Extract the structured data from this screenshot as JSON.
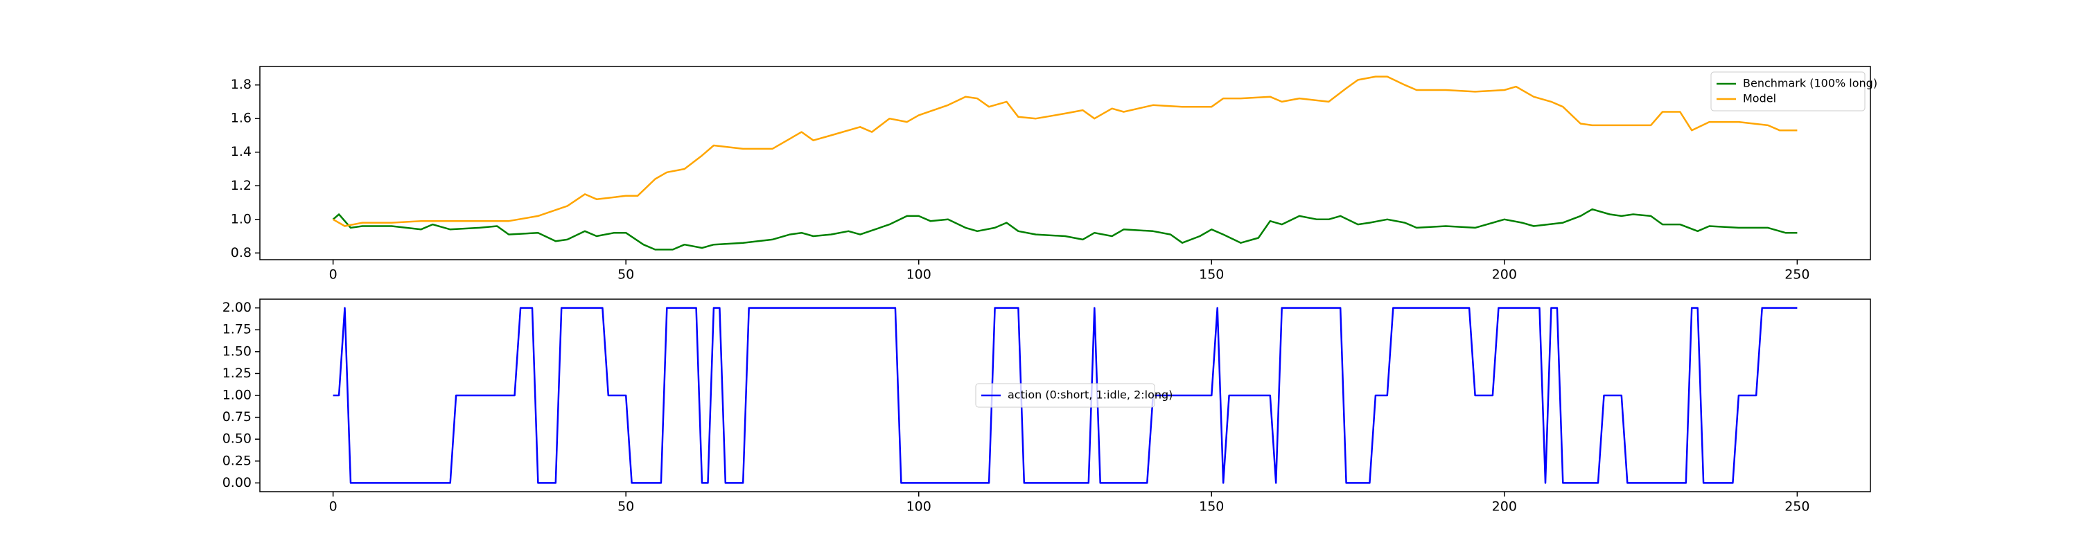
{
  "chart_data": [
    {
      "type": "line",
      "legend": "upper right",
      "xlim": [
        -12.5,
        262.5
      ],
      "xticks": [
        0,
        50,
        100,
        150,
        200,
        250
      ],
      "ylim": [
        0.76,
        1.91
      ],
      "yticks": [
        0.8,
        {
          "value": 1,
          "label": "1.0"
        },
        1.2,
        1.4,
        1.6,
        1.8
      ],
      "series": [
        {
          "name": "Benchmark (100% long)",
          "color": "#008000",
          "x": [
            0,
            1,
            3,
            5,
            10,
            15,
            17,
            20,
            25,
            28,
            30,
            35,
            38,
            40,
            43,
            45,
            48,
            50,
            53,
            55,
            58,
            60,
            63,
            65,
            70,
            75,
            78,
            80,
            82,
            85,
            88,
            90,
            95,
            98,
            100,
            102,
            105,
            108,
            110,
            113,
            115,
            117,
            120,
            125,
            128,
            130,
            133,
            135,
            140,
            143,
            145,
            148,
            150,
            152,
            155,
            158,
            160,
            162,
            165,
            168,
            170,
            172,
            175,
            177,
            180,
            183,
            185,
            190,
            195,
            200,
            203,
            205,
            210,
            213,
            215,
            218,
            220,
            222,
            225,
            227,
            230,
            233,
            235,
            240,
            245,
            248,
            250
          ],
          "values": [
            1.0,
            1.03,
            0.95,
            0.96,
            0.96,
            0.94,
            0.97,
            0.94,
            0.95,
            0.96,
            0.91,
            0.92,
            0.87,
            0.88,
            0.93,
            0.9,
            0.92,
            0.92,
            0.85,
            0.82,
            0.82,
            0.85,
            0.83,
            0.85,
            0.86,
            0.88,
            0.91,
            0.92,
            0.9,
            0.91,
            0.93,
            0.91,
            0.97,
            1.02,
            1.02,
            0.99,
            1.0,
            0.95,
            0.93,
            0.95,
            0.98,
            0.93,
            0.91,
            0.9,
            0.88,
            0.92,
            0.9,
            0.94,
            0.93,
            0.91,
            0.86,
            0.9,
            0.94,
            0.91,
            0.86,
            0.89,
            0.99,
            0.97,
            1.02,
            1.0,
            1.0,
            1.02,
            0.97,
            0.98,
            1.0,
            0.98,
            0.95,
            0.96,
            0.95,
            1.0,
            0.98,
            0.96,
            0.98,
            1.02,
            1.06,
            1.03,
            1.02,
            1.03,
            1.02,
            0.97,
            0.97,
            0.93,
            0.96,
            0.95,
            0.95,
            0.92,
            0.92
          ]
        },
        {
          "name": "Model",
          "color": "#ffa500",
          "x": [
            0,
            2,
            5,
            10,
            15,
            20,
            25,
            30,
            35,
            40,
            43,
            45,
            50,
            52,
            55,
            57,
            60,
            63,
            65,
            70,
            75,
            80,
            82,
            85,
            90,
            92,
            95,
            98,
            100,
            105,
            108,
            110,
            112,
            115,
            117,
            120,
            125,
            128,
            130,
            133,
            135,
            140,
            145,
            150,
            152,
            155,
            160,
            162,
            165,
            170,
            173,
            175,
            178,
            180,
            183,
            185,
            190,
            195,
            200,
            202,
            205,
            208,
            210,
            213,
            215,
            220,
            225,
            227,
            230,
            232,
            235,
            240,
            245,
            247,
            250
          ],
          "values": [
            1.0,
            0.96,
            0.98,
            0.98,
            0.99,
            0.99,
            0.99,
            0.99,
            1.02,
            1.08,
            1.15,
            1.12,
            1.14,
            1.14,
            1.24,
            1.28,
            1.3,
            1.38,
            1.44,
            1.42,
            1.42,
            1.52,
            1.47,
            1.5,
            1.55,
            1.52,
            1.6,
            1.58,
            1.62,
            1.68,
            1.73,
            1.72,
            1.67,
            1.7,
            1.61,
            1.6,
            1.63,
            1.65,
            1.6,
            1.66,
            1.64,
            1.68,
            1.67,
            1.67,
            1.72,
            1.72,
            1.73,
            1.7,
            1.72,
            1.7,
            1.78,
            1.83,
            1.85,
            1.85,
            1.8,
            1.77,
            1.77,
            1.76,
            1.77,
            1.79,
            1.73,
            1.7,
            1.67,
            1.57,
            1.56,
            1.56,
            1.56,
            1.64,
            1.64,
            1.53,
            1.58,
            1.58,
            1.56,
            1.53,
            1.53
          ]
        }
      ]
    },
    {
      "type": "line",
      "legend": "center",
      "xlim": [
        -12.5,
        262.5
      ],
      "xticks": [
        0,
        50,
        100,
        150,
        200,
        250
      ],
      "ylim": [
        -0.1,
        2.1
      ],
      "yticks": [
        {
          "value": 0,
          "label": "0.00"
        },
        {
          "value": 0.25,
          "label": "0.25"
        },
        {
          "value": 0.5,
          "label": "0.50"
        },
        {
          "value": 0.75,
          "label": "0.75"
        },
        {
          "value": 1,
          "label": "1.00"
        },
        {
          "value": 1.25,
          "label": "1.25"
        },
        {
          "value": 1.5,
          "label": "1.50"
        },
        {
          "value": 1.75,
          "label": "1.75"
        },
        {
          "value": 2,
          "label": "2.00"
        }
      ],
      "series": [
        {
          "name": "action (0:short, 1:idle, 2:long)",
          "color": "#0000ff",
          "x": [
            0,
            1,
            2,
            3,
            20,
            21,
            31,
            32,
            34,
            35,
            38,
            39,
            46,
            47,
            50,
            51,
            56,
            57,
            62,
            63,
            64,
            65,
            66,
            67,
            70,
            71,
            96,
            97,
            112,
            113,
            117,
            118,
            129,
            130,
            131,
            139,
            140,
            150,
            151,
            152,
            153,
            160,
            161,
            162,
            172,
            173,
            177,
            178,
            180,
            181,
            194,
            195,
            198,
            199,
            206,
            207,
            208,
            209,
            210,
            216,
            217,
            220,
            221,
            231,
            232,
            233,
            234,
            239,
            240,
            243,
            244,
            250
          ],
          "values": [
            1,
            1,
            2,
            0,
            0,
            1,
            1,
            2,
            2,
            0,
            0,
            2,
            2,
            1,
            1,
            0,
            0,
            2,
            2,
            0,
            0,
            2,
            2,
            0,
            0,
            2,
            2,
            0,
            0,
            2,
            2,
            0,
            0,
            2,
            0,
            0,
            1,
            1,
            2,
            0,
            1,
            1,
            0,
            2,
            2,
            0,
            0,
            1,
            1,
            2,
            2,
            1,
            1,
            2,
            2,
            0,
            2,
            2,
            0,
            0,
            1,
            1,
            0,
            0,
            2,
            2,
            0,
            0,
            1,
            1,
            2,
            2
          ]
        }
      ]
    }
  ]
}
